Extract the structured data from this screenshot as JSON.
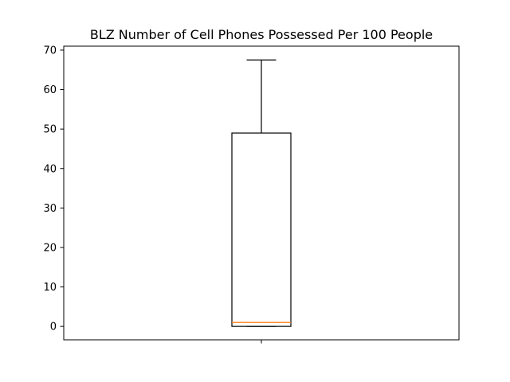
{
  "chart_data": {
    "type": "box",
    "title": "BLZ Number of Cell Phones Possessed Per 100 People",
    "xlabel": "",
    "ylabel": "",
    "ylim": [
      -3.4,
      71.0
    ],
    "yticks": [
      0,
      10,
      20,
      30,
      40,
      50,
      60,
      70
    ],
    "grid": false,
    "box": {
      "whisker_low": 0,
      "q1": 0,
      "median": 1,
      "q3": 49,
      "whisker_high": 67.5
    },
    "colors": {
      "box": "#000000",
      "median": "#ff7f0e"
    }
  }
}
